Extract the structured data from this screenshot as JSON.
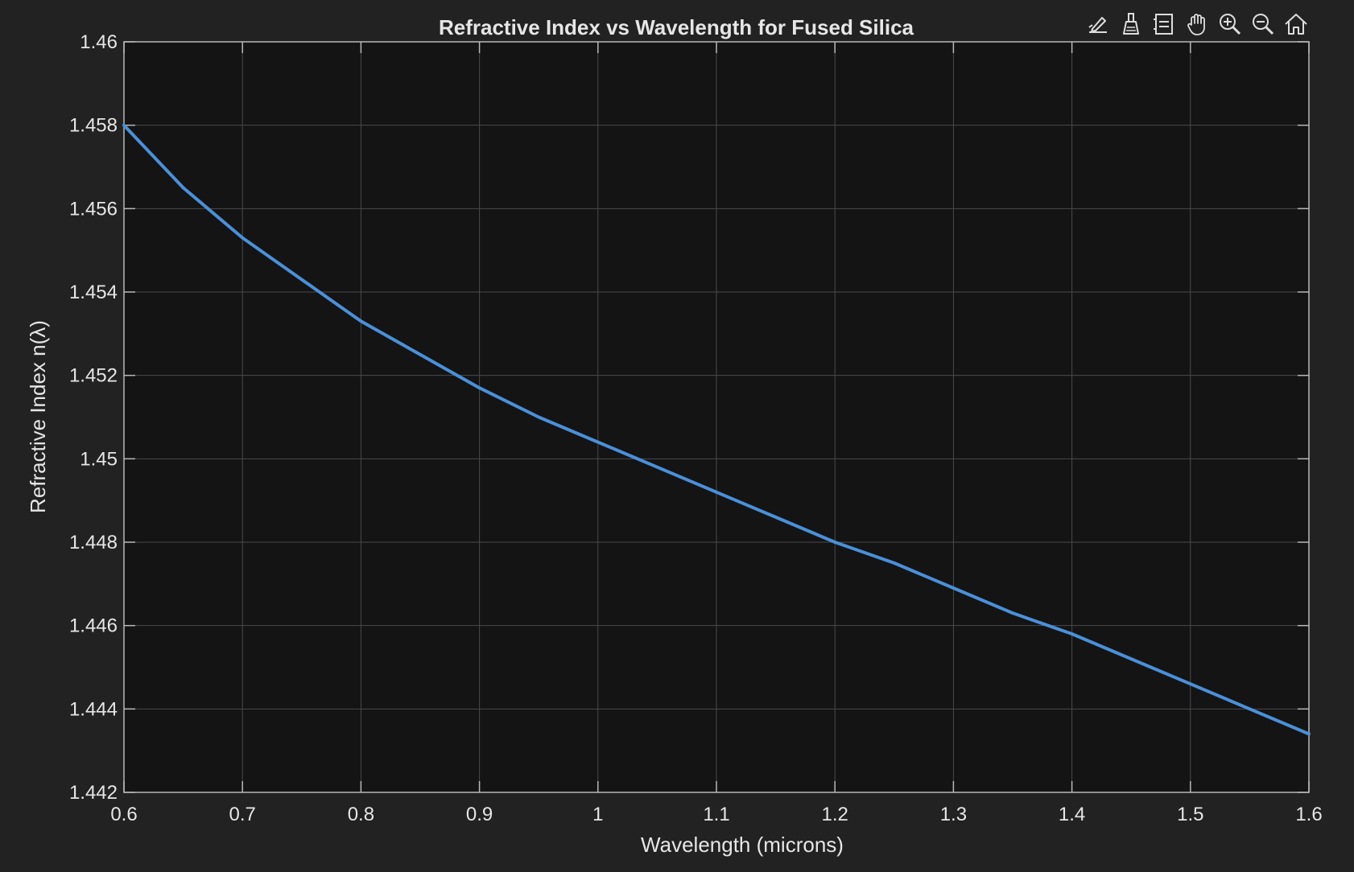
{
  "toolbar": {
    "icons": [
      "edit-data-icon",
      "brush-icon",
      "legend-icon",
      "pan-hand-icon",
      "zoom-in-icon",
      "zoom-out-icon",
      "home-icon"
    ]
  },
  "colors": {
    "figure_background": "#222222",
    "axes_background": "#141414",
    "grid": "#4a4a4a",
    "axis_line": "#b8b8b8",
    "text": "#e6e6e6",
    "series": "#4a90d9"
  },
  "chart_data": {
    "type": "line",
    "title": "Refractive Index vs Wavelength for Fused Silica",
    "xlabel": "Wavelength (microns)",
    "ylabel": "Refractive Index  n(λ)",
    "xlim": [
      0.6,
      1.6
    ],
    "ylim": [
      1.442,
      1.46
    ],
    "xticks": [
      0.6,
      0.7,
      0.8,
      0.9,
      1.0,
      1.1,
      1.2,
      1.3,
      1.4,
      1.5,
      1.6
    ],
    "xtick_labels": [
      "0.6",
      "0.7",
      "0.8",
      "0.9",
      "1",
      "1.1",
      "1.2",
      "1.3",
      "1.4",
      "1.5",
      "1.6"
    ],
    "yticks": [
      1.442,
      1.444,
      1.446,
      1.448,
      1.45,
      1.452,
      1.454,
      1.456,
      1.458,
      1.46
    ],
    "ytick_labels": [
      "1.442",
      "1.444",
      "1.446",
      "1.448",
      "1.45",
      "1.452",
      "1.454",
      "1.456",
      "1.458",
      "1.46"
    ],
    "grid": true,
    "series": [
      {
        "x": [
          0.6,
          0.65,
          0.7,
          0.75,
          0.8,
          0.85,
          0.9,
          0.95,
          1.0,
          1.05,
          1.1,
          1.15,
          1.2,
          1.25,
          1.3,
          1.35,
          1.4,
          1.45,
          1.5,
          1.55,
          1.6
        ],
        "y": [
          1.458,
          1.4565,
          1.4553,
          1.4543,
          1.4533,
          1.4525,
          1.4517,
          1.451,
          1.4504,
          1.4498,
          1.4492,
          1.4486,
          1.448,
          1.4475,
          1.4469,
          1.4463,
          1.4458,
          1.4452,
          1.4446,
          1.444,
          1.4434
        ]
      }
    ]
  }
}
